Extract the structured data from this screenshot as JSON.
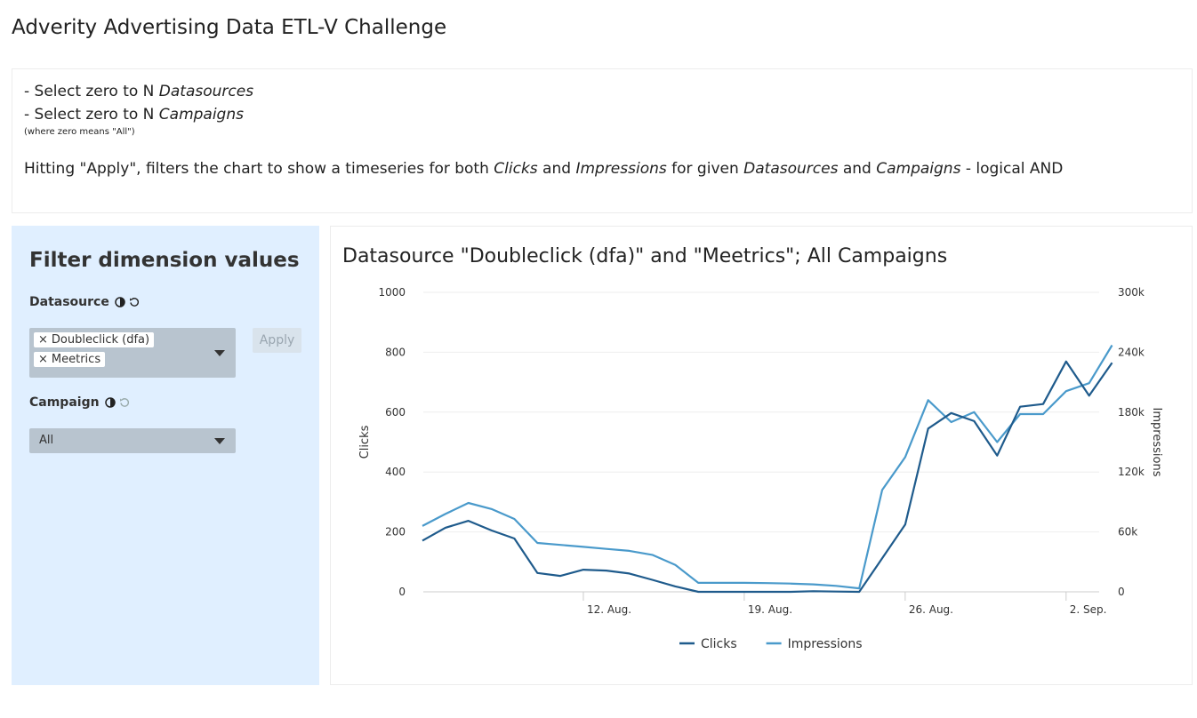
{
  "app": {
    "title": "Adverity Advertising Data ETL-V Challenge"
  },
  "info": {
    "line1_prefix": "- Select zero to N ",
    "line1_em": "Datasources",
    "line2_prefix": "- Select zero to N ",
    "line2_em": "Campaigns",
    "note": "(where zero means \"All\")",
    "desc_1": "Hitting \"Apply\", filters the chart to show a timeseries for both ",
    "desc_em1": "Clicks",
    "desc_2": " and ",
    "desc_em2": "Impressions",
    "desc_3": " for given ",
    "desc_em3": "Datasources",
    "desc_4": " and ",
    "desc_em4": "Campaigns",
    "desc_5": " - logical AND"
  },
  "sidebar": {
    "title": "Filter dimension values",
    "datasource": {
      "label": "Datasource",
      "selected": [
        "Doubleclick (dfa)",
        "Meetrics"
      ],
      "chip_remove_glyph": "×"
    },
    "campaign": {
      "label": "Campaign",
      "value": "All"
    },
    "apply_label": "Apply"
  },
  "colors": {
    "clicks": "#1f5b8c",
    "impressions": "#4a9acb",
    "sidebar_bg": "#e0efff"
  },
  "chart_data": {
    "type": "line",
    "title": "Datasource \"Doubleclick (dfa)\" and \"Meetrics\"; All Campaigns",
    "x_start": "2019-08-05",
    "x_ticks": [
      "12. Aug.",
      "19. Aug.",
      "26. Aug.",
      "2. Sep."
    ],
    "x_tick_days": [
      7,
      14,
      21,
      28
    ],
    "x_range_days": [
      0,
      29
    ],
    "y_left": {
      "label": "Clicks",
      "ticks": [
        0,
        200,
        400,
        600,
        800,
        1000
      ],
      "range": [
        0,
        1000
      ]
    },
    "y_right": {
      "label": "Impressions",
      "ticks": [
        0,
        60000,
        120000,
        180000,
        240000,
        300000
      ],
      "tick_labels": [
        "0",
        "60k",
        "120k",
        "180k",
        "240k",
        "300k"
      ],
      "range": [
        0,
        300000
      ]
    },
    "series": [
      {
        "name": "Clicks",
        "axis": "left",
        "values": [
          171,
          214,
          237,
          205,
          178,
          63,
          53,
          74,
          71,
          61,
          40,
          18,
          0,
          0,
          0,
          0,
          0,
          2,
          1,
          0,
          112,
          225,
          545,
          597,
          570,
          455,
          618,
          627,
          769,
          655,
          765
        ]
      },
      {
        "name": "Impressions",
        "axis": "right",
        "values": [
          66000,
          78000,
          89000,
          83000,
          73000,
          49000,
          47000,
          45000,
          43000,
          41000,
          37000,
          27000,
          9000,
          9000,
          9000,
          8700,
          8300,
          7500,
          6000,
          3500,
          102000,
          135000,
          192000,
          170000,
          180000,
          150000,
          178000,
          178000,
          201000,
          209000,
          247000
        ]
      }
    ],
    "legend": {
      "position": "bottom-center",
      "entries": [
        "Clicks",
        "Impressions"
      ]
    },
    "grid": true
  }
}
